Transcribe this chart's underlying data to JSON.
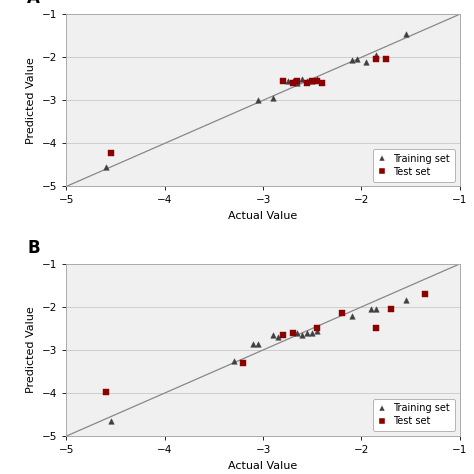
{
  "panel_A": {
    "train_x": [
      -4.6,
      -3.05,
      -2.9,
      -2.75,
      -2.7,
      -2.65,
      -2.6,
      -2.55,
      -2.5,
      -2.45,
      -2.1,
      -2.05,
      -1.95,
      -1.85,
      -1.55
    ],
    "train_y": [
      -4.55,
      -3.0,
      -2.95,
      -2.55,
      -2.55,
      -2.6,
      -2.5,
      -2.55,
      -2.55,
      -2.5,
      -2.07,
      -2.04,
      -2.1,
      -1.95,
      -1.45
    ],
    "test_x": [
      -4.55,
      -2.8,
      -2.7,
      -2.65,
      -2.55,
      -2.5,
      -2.45,
      -2.4,
      -1.85,
      -1.75
    ],
    "test_y": [
      -4.22,
      -2.55,
      -2.6,
      -2.55,
      -2.6,
      -2.55,
      -2.55,
      -2.6,
      -2.05,
      -2.05
    ],
    "line_x": [
      -5.0,
      -1.0
    ],
    "line_y": [
      -5.0,
      -1.0
    ],
    "xlim": [
      -5,
      -1
    ],
    "ylim": [
      -5,
      -1
    ],
    "xticks": [
      -5,
      -4,
      -3,
      -2,
      -1
    ],
    "yticks": [
      -5,
      -4,
      -3,
      -2,
      -1
    ],
    "xlabel": "Actual Value",
    "ylabel": "Predicted Value",
    "label": "A"
  },
  "panel_B": {
    "train_x": [
      -4.55,
      -3.3,
      -3.1,
      -3.05,
      -2.9,
      -2.85,
      -2.65,
      -2.6,
      -2.55,
      -2.5,
      -2.45,
      -2.1,
      -1.9,
      -1.85,
      -1.55
    ],
    "train_y": [
      -4.65,
      -3.25,
      -2.87,
      -2.87,
      -2.65,
      -2.7,
      -2.6,
      -2.65,
      -2.6,
      -2.6,
      -2.55,
      -2.2,
      -2.05,
      -2.05,
      -1.85
    ],
    "test_x": [
      -4.6,
      -3.2,
      -2.8,
      -2.7,
      -2.45,
      -2.2,
      -1.85,
      -1.7,
      -1.35
    ],
    "test_y": [
      -3.98,
      -3.3,
      -2.65,
      -2.6,
      -2.5,
      -2.15,
      -2.5,
      -2.05,
      -1.7
    ],
    "line_x": [
      -5.0,
      -1.0
    ],
    "line_y": [
      -5.0,
      -1.0
    ],
    "xlim": [
      -5,
      -1
    ],
    "ylim": [
      -5,
      -1
    ],
    "xticks": [
      -5,
      -4,
      -3,
      -2,
      -1
    ],
    "yticks": [
      -5,
      -4,
      -3,
      -2,
      -1
    ],
    "xlabel": "Actual Value",
    "ylabel": "Predicted Value",
    "label": "B"
  },
  "train_color": "#404040",
  "test_color": "#8b0000",
  "train_marker": "^",
  "test_marker": "s",
  "train_marker_size": 16,
  "test_marker_size": 16,
  "line_color": "#888888",
  "line_width": 0.9,
  "grid_color": "#c8c8c8",
  "plot_bg_color": "#f0f0f0",
  "background_color": "#ffffff",
  "legend_fontsize": 7,
  "axis_fontsize": 8,
  "tick_fontsize": 7.5,
  "panel_label_fontsize": 12
}
